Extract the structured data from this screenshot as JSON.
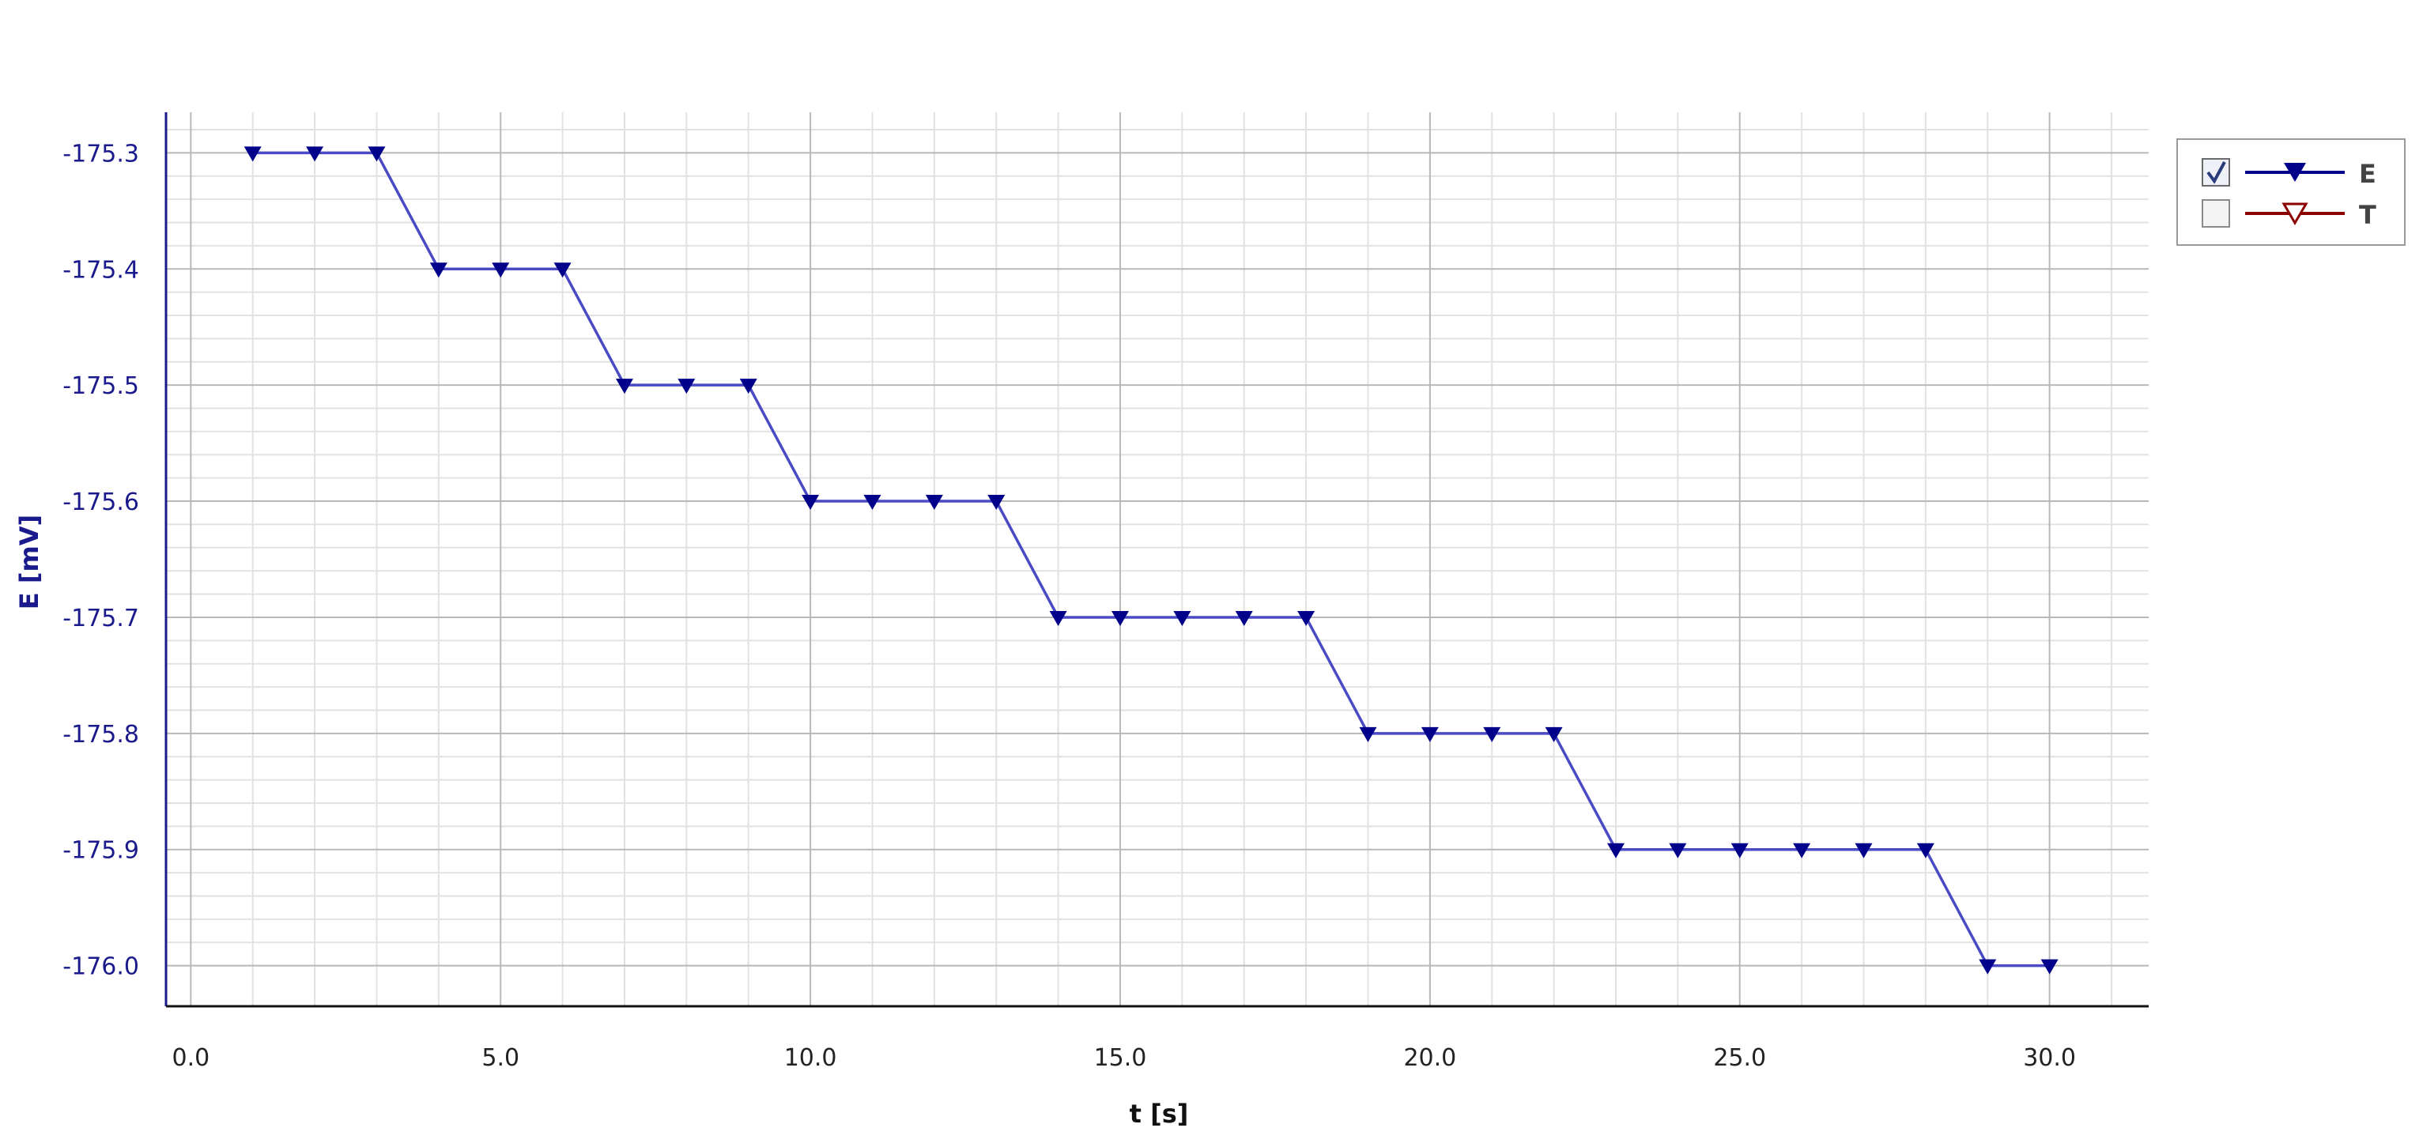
{
  "chart_data": {
    "type": "line",
    "xlabel": "t [s]",
    "ylabel": "E [mV]",
    "xlim": [
      -0.4,
      31.6
    ],
    "ylim": [
      -176.035,
      -175.265
    ],
    "x_ticks": [
      "0.0",
      "5.0",
      "10.0",
      "15.0",
      "20.0",
      "25.0",
      "30.0"
    ],
    "y_ticks": [
      "-175.3",
      "-175.4",
      "-175.5",
      "-175.6",
      "-175.7",
      "-175.8",
      "-175.9",
      "-176.0"
    ],
    "grid": true,
    "legend_position": "top-right",
    "series": [
      {
        "name": "E",
        "color": "#00008b",
        "visible": true,
        "marker": "filled-down-triangle",
        "x": [
          1,
          2,
          3,
          4,
          5,
          6,
          7,
          8,
          9,
          10,
          11,
          12,
          13,
          14,
          15,
          16,
          17,
          18,
          19,
          20,
          21,
          22,
          23,
          24,
          25,
          26,
          27,
          28,
          29,
          30
        ],
        "y": [
          -175.3,
          -175.3,
          -175.3,
          -175.4,
          -175.4,
          -175.4,
          -175.5,
          -175.5,
          -175.5,
          -175.6,
          -175.6,
          -175.6,
          -175.6,
          -175.7,
          -175.7,
          -175.7,
          -175.7,
          -175.7,
          -175.8,
          -175.8,
          -175.8,
          -175.8,
          -175.9,
          -175.9,
          -175.9,
          -175.9,
          -175.9,
          -175.9,
          -176.0,
          -176.0
        ]
      },
      {
        "name": "T",
        "color": "#8b0000",
        "visible": false,
        "marker": "hollow-down-triangle",
        "x": [],
        "y": []
      }
    ]
  }
}
